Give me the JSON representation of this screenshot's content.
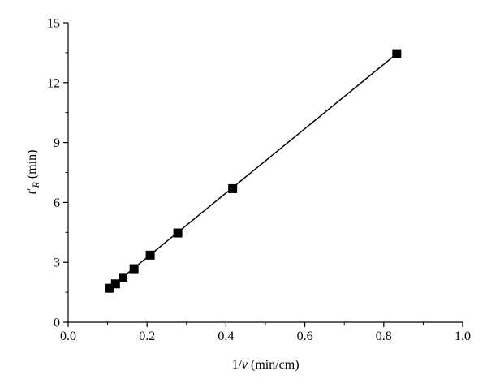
{
  "chart_data": {
    "type": "scatter",
    "x_axis": {
      "label_main": "1/",
      "label_var": "v",
      "label_unit": " (min/cm)",
      "range": [
        0.0,
        1.0
      ],
      "ticks": [
        0.0,
        0.2,
        0.4,
        0.6,
        0.8,
        1.0
      ],
      "tick_labels": [
        "0.0",
        "0.2",
        "0.4",
        "0.6",
        "0.8",
        "1.0"
      ]
    },
    "y_axis": {
      "label_var": "t",
      "label_prime": "′",
      "label_sub": "R",
      "label_unit": " (min)",
      "range": [
        0,
        15
      ],
      "ticks": [
        0,
        3,
        6,
        9,
        12,
        15
      ],
      "tick_labels": [
        "0",
        "3",
        "6",
        "9",
        "12",
        "15"
      ]
    },
    "series": [
      {
        "marker": "square",
        "x": [
          0.104,
          0.12,
          0.139,
          0.167,
          0.208,
          0.278,
          0.417,
          0.833
        ],
        "y": [
          1.7,
          1.92,
          2.24,
          2.68,
          3.36,
          4.47,
          6.69,
          13.45
        ]
      }
    ],
    "fit_line": {
      "x": [
        0.104,
        0.833
      ],
      "y": [
        1.7,
        13.45
      ]
    },
    "grid": false,
    "legend": "none"
  }
}
